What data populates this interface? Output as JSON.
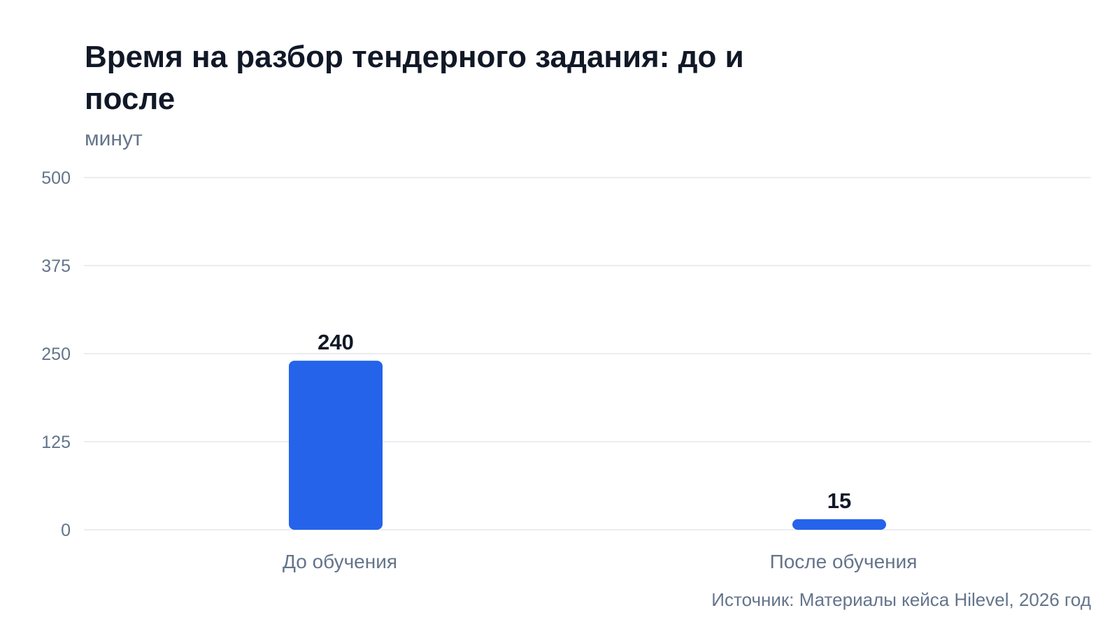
{
  "header": {
    "title": "Время на разбор тендерного задания: до и после",
    "unit": "минут"
  },
  "footer": {
    "source": "Источник: Материалы кейса Hilevel, 2026 год"
  },
  "colors": {
    "bar": "#2563eb",
    "grid": "#e5e7eb",
    "axis_text": "#64748b",
    "value_text": "#111827"
  },
  "chart_data": {
    "type": "bar",
    "title": "Время на разбор тендерного задания: до и после",
    "subtitle": "минут",
    "xlabel": "",
    "ylabel": "",
    "categories": [
      "До обучения",
      "После обучения"
    ],
    "values": [
      240,
      15
    ],
    "value_labels": [
      "240",
      "15"
    ],
    "ylim": [
      0,
      500
    ],
    "yticks": [
      0,
      125,
      250,
      375,
      500
    ],
    "ytick_labels": [
      "0",
      "125",
      "250",
      "375",
      "500"
    ],
    "grid": true,
    "legend": "none"
  }
}
